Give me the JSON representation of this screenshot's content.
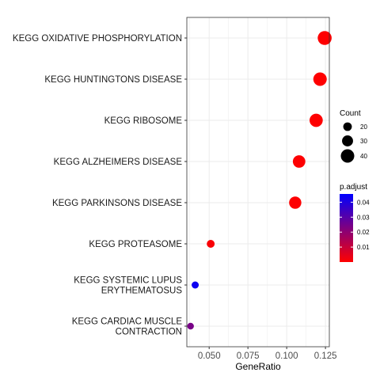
{
  "chart_data": {
    "type": "scatter",
    "xlabel": "GeneRatio",
    "ylabel": "",
    "title": "",
    "xlim": [
      0.0356,
      0.1275
    ],
    "x_ticks": [
      "0.050",
      "0.075",
      "0.100",
      "0.125"
    ],
    "x_tick_values": [
      0.05,
      0.075,
      0.1,
      0.125
    ],
    "grid": true,
    "categories": [
      {
        "label": [
          "KEGG OXIDATIVE PHOSPHORYLATION"
        ],
        "gene_ratio": 0.1245,
        "count": 42,
        "p_adjust": 0.0001
      },
      {
        "label": [
          "KEGG HUNTINGTONS DISEASE"
        ],
        "gene_ratio": 0.1215,
        "count": 40,
        "p_adjust": 0.0002
      },
      {
        "label": [
          "KEGG RIBOSOME"
        ],
        "gene_ratio": 0.119,
        "count": 39,
        "p_adjust": 0.0002
      },
      {
        "label": [
          "KEGG ALZHEIMERS DISEASE"
        ],
        "gene_ratio": 0.108,
        "count": 36,
        "p_adjust": 0.0004
      },
      {
        "label": [
          "KEGG PARKINSONS DISEASE"
        ],
        "gene_ratio": 0.1055,
        "count": 35,
        "p_adjust": 0.0004
      },
      {
        "label": [
          "KEGG PROTEASOME"
        ],
        "gene_ratio": 0.051,
        "count": 17,
        "p_adjust": 0.001
      },
      {
        "label": [
          "KEGG SYSTEMIC LUPUS",
          "ERYTHEMATOSUS"
        ],
        "gene_ratio": 0.041,
        "count": 14,
        "p_adjust": 0.043
      },
      {
        "label": [
          "KEGG CARDIAC MUSCLE",
          "CONTRACTION"
        ],
        "gene_ratio": 0.038,
        "count": 12,
        "p_adjust": 0.024
      }
    ],
    "legend_count": {
      "title": "Count",
      "sizes": [
        20,
        30,
        40
      ],
      "labels": [
        "20",
        "30",
        "40"
      ]
    },
    "legend_color": {
      "title": "p.adjust",
      "ticks": [
        0.04,
        0.03,
        0.02,
        0.01
      ],
      "labels": [
        "0.04",
        "0.03",
        "0.02",
        "0.01"
      ],
      "low_color": "#FF0000",
      "high_color": "#0000FF",
      "min": 0.0,
      "max": 0.0455
    },
    "panel_border_color": "#333333",
    "grid_color": "#ebebeb"
  }
}
